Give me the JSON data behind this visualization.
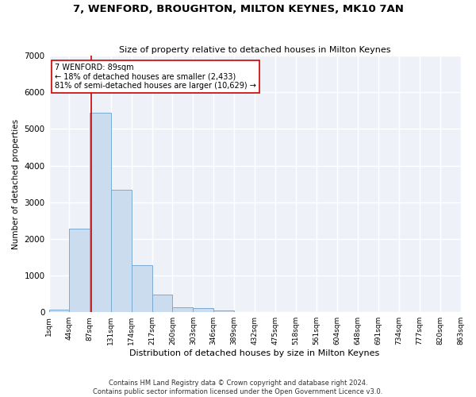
{
  "title": "7, WENFORD, BROUGHTON, MILTON KEYNES, MK10 7AN",
  "subtitle": "Size of property relative to detached houses in Milton Keynes",
  "xlabel": "Distribution of detached houses by size in Milton Keynes",
  "ylabel": "Number of detached properties",
  "bar_color": "#ccdcef",
  "bar_edge_color": "#7aaad0",
  "background_color": "#eef2f8",
  "grid_color": "#ffffff",
  "annotation_box_color": "#cc0000",
  "annotation_text": "7 WENFORD: 89sqm\n← 18% of detached houses are smaller (2,433)\n81% of semi-detached houses are larger (10,629) →",
  "property_line_x": 89,
  "property_line_color": "#cc0000",
  "footnote": "Contains HM Land Registry data © Crown copyright and database right 2024.\nContains public sector information licensed under the Open Government Licence v3.0.",
  "bin_edges": [
    1,
    44,
    87,
    131,
    174,
    217,
    260,
    303,
    346,
    389,
    432,
    475,
    518,
    561,
    604,
    648,
    691,
    734,
    777,
    820,
    863
  ],
  "bar_heights": [
    70,
    2270,
    5440,
    3350,
    1290,
    490,
    145,
    105,
    55,
    0,
    0,
    0,
    0,
    0,
    0,
    0,
    0,
    0,
    0,
    0
  ],
  "ylim": [
    0,
    7000
  ],
  "yticks": [
    0,
    1000,
    2000,
    3000,
    4000,
    5000,
    6000,
    7000
  ],
  "figsize": [
    6.0,
    5.0
  ],
  "dpi": 100
}
